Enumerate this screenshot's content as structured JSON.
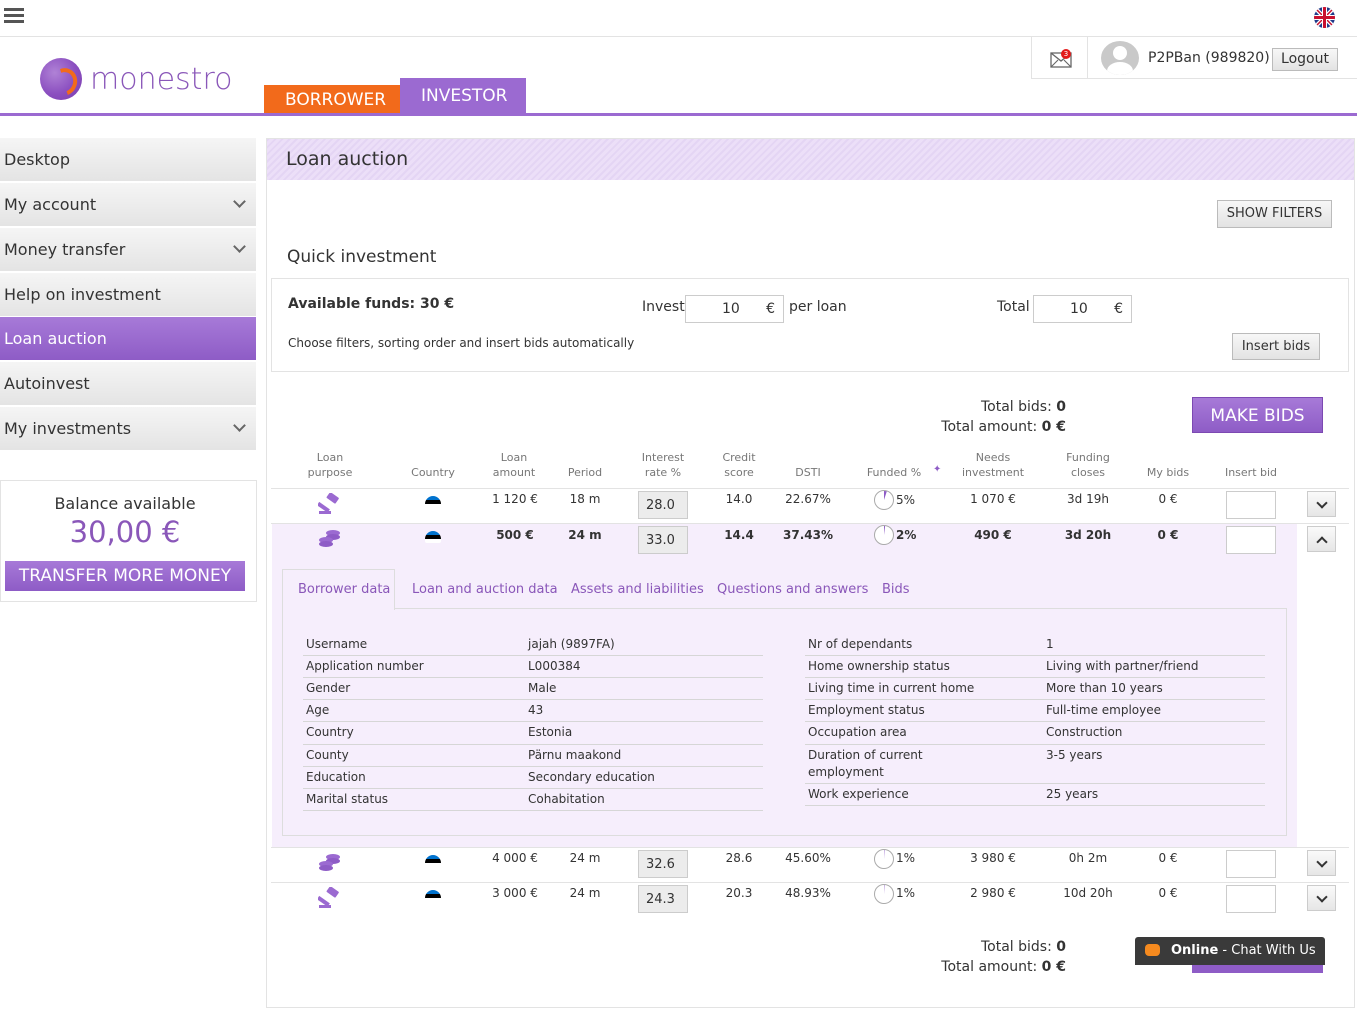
{
  "header": {
    "brand": "monestro",
    "tabs": [
      {
        "label": "BORROWER"
      },
      {
        "label": "INVESTOR"
      }
    ],
    "username": "P2PBan (989820)",
    "logout_label": "Logout",
    "mail_count": "3"
  },
  "sidebar": {
    "items": [
      {
        "label": "Desktop"
      },
      {
        "label": "My account"
      },
      {
        "label": "Money transfer"
      },
      {
        "label": "Help on investment"
      },
      {
        "label": "Loan auction"
      },
      {
        "label": "Autoinvest"
      },
      {
        "label": "My investments"
      }
    ],
    "balance_label": "Balance available",
    "balance_value": "30,00 €",
    "transfer_label": "TRANSFER MORE MONEY"
  },
  "main": {
    "title": "Loan auction",
    "show_filters": "SHOW FILTERS",
    "quick_investment": "Quick investment",
    "available_funds": "Available funds: 30 €",
    "choose_text": "Choose filters, sorting order and insert bids automatically",
    "invest_label": "Invest",
    "invest_value": "10",
    "per_loan": "per loan",
    "total_label": "Total",
    "total_value": "10",
    "currency": "€",
    "insert_bids": "Insert bids",
    "total_bids_label": "Total bids:",
    "total_bids_value": "0",
    "total_amount_label": "Total amount:",
    "total_amount_value": "0 €",
    "make_bids": "MAKE BIDS"
  },
  "table": {
    "headers": {
      "loan_purpose_1": "Loan",
      "loan_purpose_2": "purpose",
      "country": "Country",
      "loan_amount_1": "Loan",
      "loan_amount_2": "amount",
      "period": "Period",
      "interest_1": "Interest",
      "interest_2": "rate %",
      "credit_1": "Credit",
      "credit_2": "score",
      "dsti": "DSTI",
      "funded": "Funded %",
      "needs_1": "Needs",
      "needs_2": "investment",
      "funding_1": "Funding",
      "funding_2": "closes",
      "my_bids": "My bids",
      "insert_bid": "Insert bid"
    },
    "rows": [
      {
        "amount": "1 120 €",
        "period": "18 m",
        "rate": "28.0",
        "credit": "14.0",
        "dsti": "22.67%",
        "funded": "5%",
        "needs": "1 070 €",
        "closes": "3d 19h",
        "my_bids": "0 €"
      },
      {
        "amount": "500 €",
        "period": "24 m",
        "rate": "33.0",
        "credit": "14.4",
        "dsti": "37.43%",
        "funded": "2%",
        "needs": "490 €",
        "closes": "3d 20h",
        "my_bids": "0 €"
      },
      {
        "amount": "4 000 €",
        "period": "24 m",
        "rate": "32.6",
        "credit": "28.6",
        "dsti": "45.60%",
        "funded": "1%",
        "needs": "3 980 €",
        "closes": "0h 2m",
        "my_bids": "0 €"
      },
      {
        "amount": "3 000 €",
        "period": "24 m",
        "rate": "24.3",
        "credit": "20.3",
        "dsti": "48.93%",
        "funded": "1%",
        "needs": "2 980 €",
        "closes": "10d 20h",
        "my_bids": "0 €"
      }
    ]
  },
  "details": {
    "tabs": [
      "Borrower data",
      "Loan and auction data",
      "Assets and liabilities",
      "Questions and answers",
      "Bids"
    ],
    "left": [
      {
        "k": "Username",
        "v": "jajah (9897FA)"
      },
      {
        "k": "Application number",
        "v": "L000384"
      },
      {
        "k": "Gender",
        "v": "Male"
      },
      {
        "k": "Age",
        "v": "43"
      },
      {
        "k": "Country",
        "v": "Estonia"
      },
      {
        "k": "County",
        "v": "Pärnu maakond"
      },
      {
        "k": "Education",
        "v": "Secondary education"
      },
      {
        "k": "Marital status",
        "v": "Cohabitation"
      }
    ],
    "right": [
      {
        "k": "Nr of dependants",
        "v": "1"
      },
      {
        "k": "Home ownership status",
        "v": "Living with partner/friend"
      },
      {
        "k": "Living time in current home",
        "v": "More than 10 years"
      },
      {
        "k": "Employment status",
        "v": "Full-time employee"
      },
      {
        "k": "Occupation area",
        "v": "Construction"
      },
      {
        "k": "Duration of current",
        "k2": "employment",
        "v": "3-5 years"
      },
      {
        "k": "Work experience",
        "v": "25 years"
      }
    ]
  },
  "chat": {
    "status": "Online",
    "label": " - Chat With Us"
  },
  "colors": {
    "accent": "#9b6ad1",
    "borrower": "#f26a1b",
    "flag_ee": [
      "#0072ce",
      "#000000",
      "#ffffff"
    ]
  }
}
